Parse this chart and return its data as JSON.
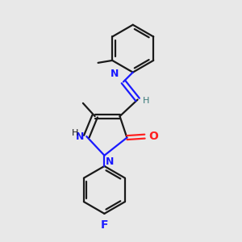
{
  "bg_color": "#e8e8e8",
  "bond_color": "#1a1a1a",
  "n_color": "#1a1aff",
  "o_color": "#ff2020",
  "f_color": "#2020ff",
  "lw": 1.6,
  "dbo": 0.12,
  "xlim": [
    0,
    10
  ],
  "ylim": [
    0,
    10
  ]
}
